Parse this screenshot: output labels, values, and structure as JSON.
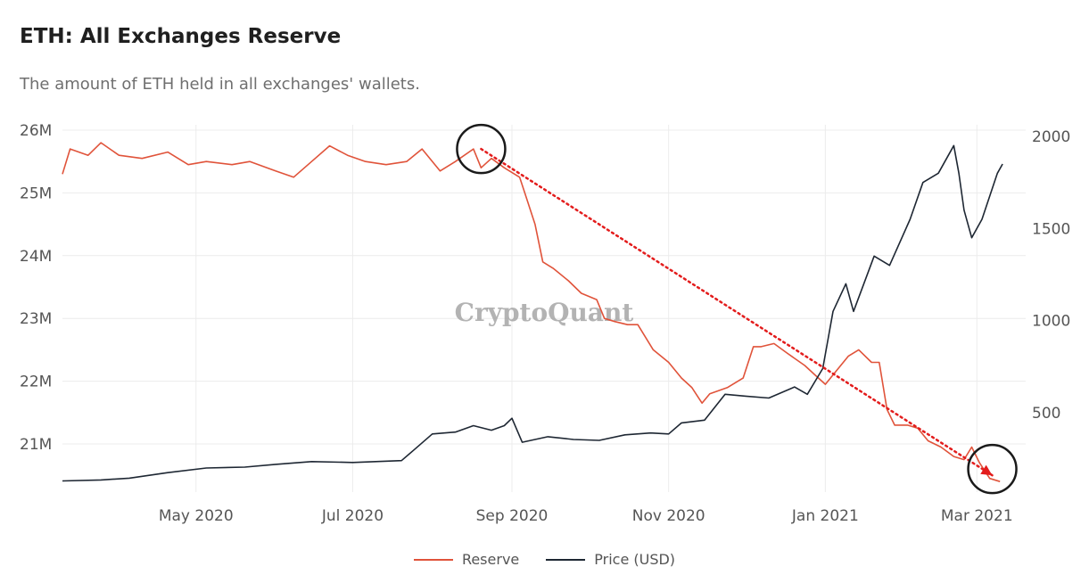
{
  "title": "ETH: All Exchanges Reserve",
  "subtitle": "The amount of ETH held in all exchanges' wallets.",
  "watermark": "CryptoQuant",
  "colors": {
    "reserve": "#e0533a",
    "price": "#1e2733",
    "annotation": "#e31c1c",
    "grid": "#ececec",
    "tick": "#555555"
  },
  "legend": [
    {
      "label": "Reserve",
      "color": "#e0533a"
    },
    {
      "label": "Price (USD)",
      "color": "#1e2733"
    }
  ],
  "chart_data": {
    "type": "line",
    "title": "ETH: All Exchanges Reserve",
    "x_range": [
      "2020-03-10",
      "2021-03-20"
    ],
    "x_ticks": [
      {
        "date": "2020-05-01",
        "label": "May 2020"
      },
      {
        "date": "2020-07-01",
        "label": "Jul 2020"
      },
      {
        "date": "2020-09-01",
        "label": "Sep 2020"
      },
      {
        "date": "2020-11-01",
        "label": "Nov 2020"
      },
      {
        "date": "2021-01-01",
        "label": "Jan 2021"
      },
      {
        "date": "2021-03-01",
        "label": "Mar 2021"
      }
    ],
    "y_left": {
      "label": "Reserve",
      "range": [
        20.3,
        26
      ],
      "ticks": [
        26,
        25,
        24,
        23,
        22,
        21
      ],
      "tick_labels": [
        "26M",
        "25M",
        "24M",
        "23M",
        "22M",
        "21M"
      ]
    },
    "y_right": {
      "label": "Price (USD)",
      "range": [
        100,
        2000
      ],
      "ticks": [
        2000,
        1500,
        1000,
        500
      ],
      "tick_labels": [
        "2000",
        "1500",
        "1000",
        "500"
      ]
    },
    "series": [
      {
        "name": "Reserve",
        "axis": "left",
        "unit": "M ETH",
        "points": [
          [
            "2020-03-10",
            25.3
          ],
          [
            "2020-03-13",
            25.7
          ],
          [
            "2020-03-20",
            25.6
          ],
          [
            "2020-03-25",
            25.8
          ],
          [
            "2020-04-01",
            25.6
          ],
          [
            "2020-04-10",
            25.55
          ],
          [
            "2020-04-20",
            25.65
          ],
          [
            "2020-04-28",
            25.45
          ],
          [
            "2020-05-05",
            25.5
          ],
          [
            "2020-05-15",
            25.45
          ],
          [
            "2020-05-22",
            25.5
          ],
          [
            "2020-06-01",
            25.35
          ],
          [
            "2020-06-08",
            25.25
          ],
          [
            "2020-06-15",
            25.5
          ],
          [
            "2020-06-22",
            25.75
          ],
          [
            "2020-06-29",
            25.6
          ],
          [
            "2020-07-06",
            25.5
          ],
          [
            "2020-07-14",
            25.45
          ],
          [
            "2020-07-22",
            25.5
          ],
          [
            "2020-07-28",
            25.7
          ],
          [
            "2020-08-04",
            25.35
          ],
          [
            "2020-08-10",
            25.5
          ],
          [
            "2020-08-17",
            25.7
          ],
          [
            "2020-08-20",
            25.4
          ],
          [
            "2020-08-24",
            25.55
          ],
          [
            "2020-08-29",
            25.4
          ],
          [
            "2020-09-04",
            25.25
          ],
          [
            "2020-09-06",
            25.0
          ],
          [
            "2020-09-10",
            24.5
          ],
          [
            "2020-09-13",
            23.9
          ],
          [
            "2020-09-17",
            23.8
          ],
          [
            "2020-09-23",
            23.6
          ],
          [
            "2020-09-28",
            23.4
          ],
          [
            "2020-10-04",
            23.3
          ],
          [
            "2020-10-07",
            23.0
          ],
          [
            "2020-10-11",
            22.95
          ],
          [
            "2020-10-16",
            22.9
          ],
          [
            "2020-10-20",
            22.9
          ],
          [
            "2020-10-26",
            22.5
          ],
          [
            "2020-11-01",
            22.3
          ],
          [
            "2020-11-06",
            22.05
          ],
          [
            "2020-11-10",
            21.9
          ],
          [
            "2020-11-14",
            21.65
          ],
          [
            "2020-11-17",
            21.8
          ],
          [
            "2020-11-24",
            21.9
          ],
          [
            "2020-11-30",
            22.05
          ],
          [
            "2020-12-04",
            22.55
          ],
          [
            "2020-12-07",
            22.55
          ],
          [
            "2020-12-12",
            22.6
          ],
          [
            "2020-12-17",
            22.45
          ],
          [
            "2020-12-24",
            22.25
          ],
          [
            "2020-12-28",
            22.1
          ],
          [
            "2021-01-01",
            21.95
          ],
          [
            "2021-01-05",
            22.15
          ],
          [
            "2021-01-10",
            22.4
          ],
          [
            "2021-01-14",
            22.5
          ],
          [
            "2021-01-19",
            22.3
          ],
          [
            "2021-01-22",
            22.3
          ],
          [
            "2021-01-25",
            21.55
          ],
          [
            "2021-01-28",
            21.3
          ],
          [
            "2021-02-02",
            21.3
          ],
          [
            "2021-02-06",
            21.25
          ],
          [
            "2021-02-10",
            21.05
          ],
          [
            "2021-02-15",
            20.95
          ],
          [
            "2021-02-20",
            20.8
          ],
          [
            "2021-02-24",
            20.75
          ],
          [
            "2021-02-27",
            20.95
          ],
          [
            "2021-03-02",
            20.7
          ],
          [
            "2021-03-06",
            20.45
          ],
          [
            "2021-03-10",
            20.4
          ]
        ]
      },
      {
        "name": "Price (USD)",
        "axis": "right",
        "unit": "USD",
        "points": [
          [
            "2020-03-10",
            130
          ],
          [
            "2020-03-25",
            135
          ],
          [
            "2020-04-05",
            145
          ],
          [
            "2020-04-20",
            175
          ],
          [
            "2020-05-05",
            200
          ],
          [
            "2020-05-20",
            205
          ],
          [
            "2020-06-01",
            220
          ],
          [
            "2020-06-15",
            235
          ],
          [
            "2020-07-01",
            230
          ],
          [
            "2020-07-20",
            240
          ],
          [
            "2020-07-25",
            300
          ],
          [
            "2020-08-01",
            385
          ],
          [
            "2020-08-10",
            395
          ],
          [
            "2020-08-17",
            430
          ],
          [
            "2020-08-24",
            405
          ],
          [
            "2020-08-29",
            430
          ],
          [
            "2020-09-01",
            470
          ],
          [
            "2020-09-05",
            340
          ],
          [
            "2020-09-15",
            370
          ],
          [
            "2020-09-25",
            355
          ],
          [
            "2020-10-05",
            350
          ],
          [
            "2020-10-15",
            380
          ],
          [
            "2020-10-25",
            390
          ],
          [
            "2020-11-01",
            385
          ],
          [
            "2020-11-06",
            445
          ],
          [
            "2020-11-15",
            460
          ],
          [
            "2020-11-23",
            600
          ],
          [
            "2020-12-01",
            590
          ],
          [
            "2020-12-10",
            580
          ],
          [
            "2020-12-20",
            640
          ],
          [
            "2020-12-25",
            600
          ],
          [
            "2020-12-31",
            740
          ],
          [
            "2021-01-04",
            1050
          ],
          [
            "2021-01-09",
            1200
          ],
          [
            "2021-01-12",
            1050
          ],
          [
            "2021-01-20",
            1350
          ],
          [
            "2021-01-26",
            1300
          ],
          [
            "2021-02-03",
            1550
          ],
          [
            "2021-02-08",
            1750
          ],
          [
            "2021-02-14",
            1800
          ],
          [
            "2021-02-20",
            1950
          ],
          [
            "2021-02-22",
            1800
          ],
          [
            "2021-02-24",
            1600
          ],
          [
            "2021-02-27",
            1450
          ],
          [
            "2021-03-03",
            1550
          ],
          [
            "2021-03-09",
            1800
          ],
          [
            "2021-03-11",
            1850
          ]
        ]
      }
    ],
    "annotations": [
      {
        "type": "circle",
        "date": "2020-08-20",
        "value": 25.7,
        "axis": "left"
      },
      {
        "type": "circle",
        "date": "2021-03-07",
        "value": 20.6,
        "axis": "left"
      },
      {
        "type": "arrow",
        "from": {
          "date": "2020-08-20",
          "value": 25.7
        },
        "to": {
          "date": "2021-03-07",
          "value": 20.5
        },
        "axis": "left",
        "style": "dotted"
      }
    ]
  }
}
